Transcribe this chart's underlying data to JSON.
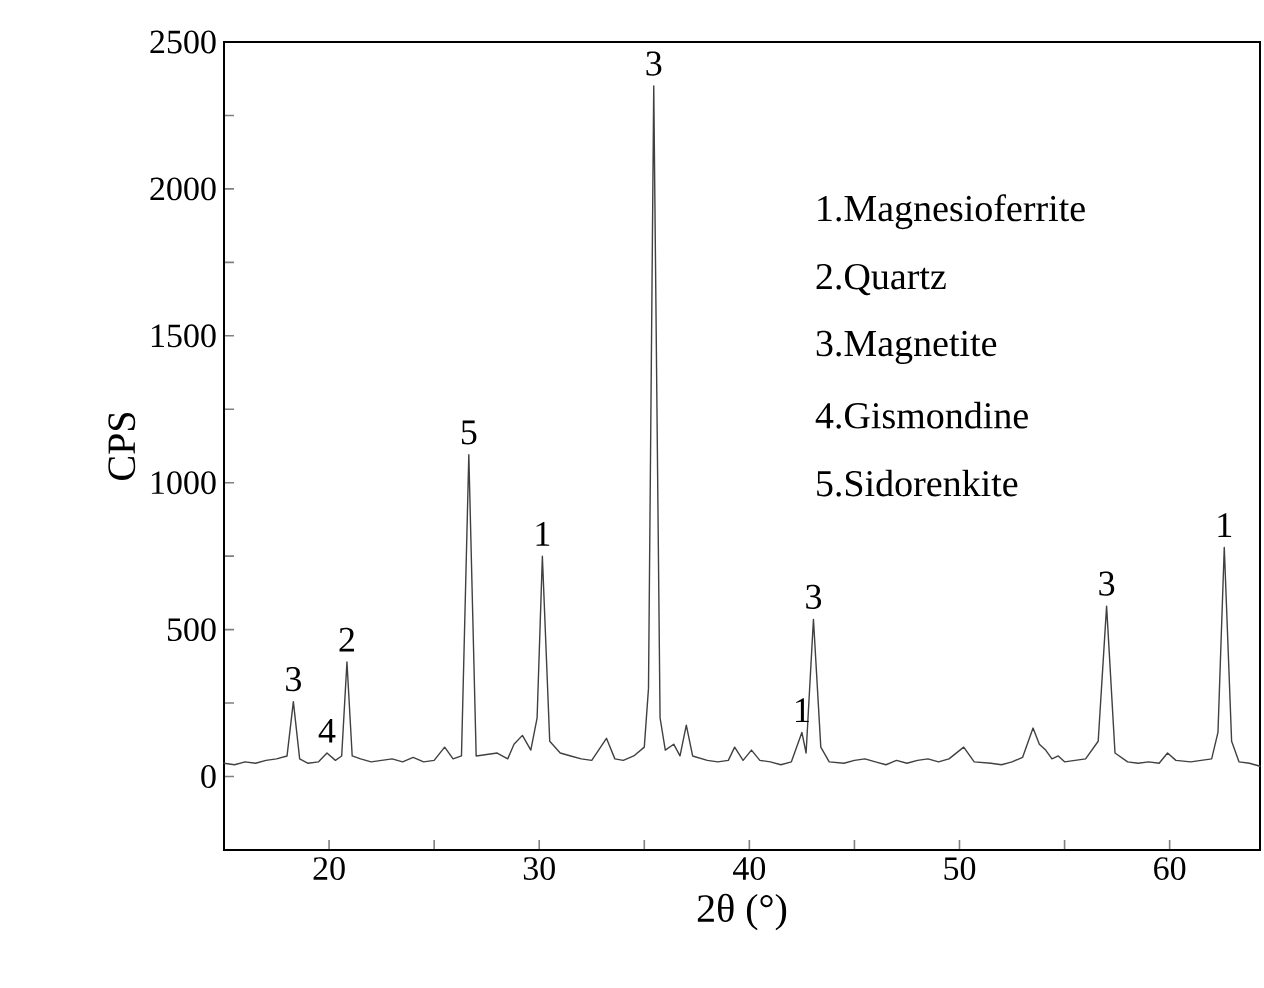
{
  "chart_data": {
    "type": "line",
    "xlabel": "2θ (°)",
    "ylabel": "CPS",
    "xlim": [
      15,
      64.3
    ],
    "ylim": [
      -250,
      2500
    ],
    "xticks": [
      {
        "value": 15,
        "label": null
      },
      20,
      {
        "value": 25,
        "label": null
      },
      30,
      {
        "value": 35,
        "label": null
      },
      40,
      {
        "value": 45,
        "label": null
      },
      50,
      {
        "value": 55,
        "label": null
      },
      60
    ],
    "yticks": [
      {
        "value": -250,
        "label": null
      },
      0,
      {
        "value": 250,
        "label": null
      },
      500,
      {
        "value": 750,
        "label": null
      },
      1000,
      {
        "value": 1250,
        "label": null
      },
      1500,
      {
        "value": 1750,
        "label": null
      },
      2000,
      {
        "value": 2250,
        "label": null
      },
      2500
    ],
    "x": [
      15,
      15.5,
      16,
      16.5,
      17,
      17.5,
      18.0,
      18.3,
      18.6,
      19.0,
      19.5,
      19.9,
      20.3,
      20.6,
      20.85,
      21.1,
      21.5,
      22,
      22.5,
      23,
      23.5,
      24,
      24.5,
      25,
      25.5,
      25.9,
      26.3,
      26.65,
      27.0,
      27.5,
      28,
      28.5,
      28.8,
      29.2,
      29.6,
      29.9,
      30.15,
      30.5,
      31,
      31.5,
      32,
      32.5,
      33.2,
      33.6,
      34,
      34.5,
      35.0,
      35.2,
      35.45,
      35.75,
      36.0,
      36.4,
      36.7,
      37.0,
      37.3,
      38,
      38.5,
      39,
      39.3,
      39.7,
      40.1,
      40.5,
      41,
      41.5,
      42,
      42.5,
      42.7,
      43.05,
      43.4,
      43.8,
      44.5,
      45,
      45.5,
      46,
      46.5,
      47,
      47.5,
      48,
      48.5,
      49,
      49.5,
      50.2,
      50.7,
      51.5,
      52,
      52.5,
      53,
      53.5,
      53.8,
      54.1,
      54.4,
      54.7,
      55,
      55.5,
      56,
      56.6,
      57.0,
      57.4,
      58,
      58.5,
      59,
      59.5,
      59.9,
      60.3,
      61,
      61.5,
      62,
      62.3,
      62.6,
      62.95,
      63.3,
      63.8,
      64.3
    ],
    "series": [
      {
        "color": "#404040",
        "values": [
          45,
          40,
          50,
          45,
          55,
          60,
          70,
          255,
          60,
          45,
          50,
          80,
          55,
          70,
          390,
          70,
          60,
          50,
          55,
          60,
          50,
          65,
          50,
          55,
          100,
          60,
          70,
          1095,
          70,
          75,
          80,
          60,
          110,
          140,
          90,
          200,
          750,
          120,
          80,
          70,
          60,
          55,
          130,
          60,
          55,
          70,
          100,
          300,
          2350,
          200,
          90,
          110,
          70,
          175,
          70,
          55,
          50,
          55,
          100,
          55,
          90,
          55,
          50,
          40,
          50,
          150,
          80,
          535,
          100,
          50,
          45,
          55,
          60,
          50,
          40,
          55,
          45,
          55,
          60,
          50,
          60,
          100,
          50,
          45,
          40,
          50,
          65,
          165,
          110,
          90,
          60,
          70,
          50,
          55,
          60,
          120,
          580,
          80,
          50,
          45,
          50,
          45,
          80,
          55,
          50,
          55,
          60,
          150,
          780,
          120,
          50,
          45,
          35
        ]
      }
    ],
    "annotations": [
      {
        "text": "3",
        "x": 18.3,
        "y": 255
      },
      {
        "text": "4",
        "x": 19.9,
        "y": 80
      },
      {
        "text": "2",
        "x": 20.85,
        "y": 390
      },
      {
        "text": "5",
        "x": 26.65,
        "y": 1095
      },
      {
        "text": "1",
        "x": 30.15,
        "y": 750
      },
      {
        "text": "3",
        "x": 35.45,
        "y": 2350
      },
      {
        "text": "1",
        "x": 42.5,
        "y": 150
      },
      {
        "text": "3",
        "x": 43.05,
        "y": 535
      },
      {
        "text": "3",
        "x": 57.0,
        "y": 580
      },
      {
        "text": "1",
        "x": 62.6,
        "y": 780
      },
      "1.Magnesioferrite",
      "2.Quartz",
      "3.Magnetite",
      "4.Gismondine",
      "5.Sidorenkite"
    ]
  }
}
